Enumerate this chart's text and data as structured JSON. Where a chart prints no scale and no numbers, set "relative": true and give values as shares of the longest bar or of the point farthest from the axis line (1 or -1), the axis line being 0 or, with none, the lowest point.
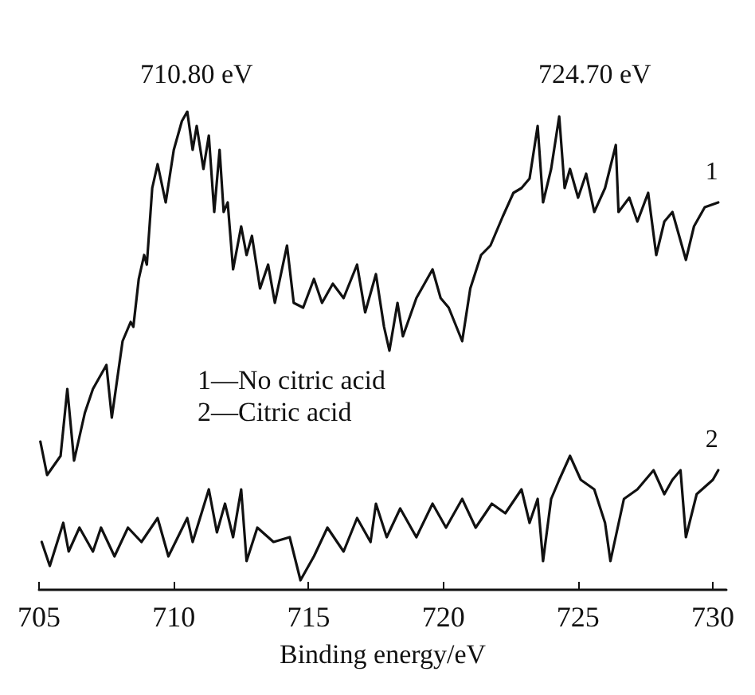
{
  "chart_data": {
    "type": "line",
    "relative": true,
    "xlabel": "Binding energy/eV",
    "xlim": [
      705,
      730.5
    ],
    "xticks": [
      705,
      710,
      715,
      720,
      725,
      730
    ],
    "grid": false,
    "legend": false,
    "marker": "none",
    "line_style": "solid",
    "annotations": [
      "710.80 eV",
      "724.70 eV",
      "1—No citric acid",
      "2—Citric acid"
    ],
    "series": [
      {
        "name": "1",
        "color": "#111111",
        "x": [
          705.05,
          705.3,
          705.8,
          706.05,
          706.3,
          706.7,
          707.0,
          707.5,
          707.7,
          707.9,
          708.1,
          708.4,
          708.5,
          708.7,
          708.9,
          709.0,
          709.2,
          709.4,
          709.7,
          710.0,
          710.3,
          710.5,
          710.7,
          710.85,
          711.1,
          711.3,
          711.5,
          711.7,
          711.85,
          712.0,
          712.2,
          712.5,
          712.7,
          712.9,
          713.2,
          713.5,
          713.75,
          714.2,
          714.45,
          714.8,
          715.2,
          715.5,
          715.9,
          716.3,
          716.8,
          717.1,
          717.5,
          717.8,
          718.0,
          718.3,
          718.5,
          719.0,
          719.6,
          719.9,
          720.2,
          720.7,
          721.0,
          721.4,
          721.75,
          722.2,
          722.6,
          722.9,
          723.2,
          723.5,
          723.7,
          724.0,
          724.3,
          724.5,
          724.7,
          725.0,
          725.3,
          725.6,
          726.0,
          726.4,
          726.5,
          726.9,
          727.2,
          727.6,
          727.9,
          728.2,
          728.5,
          729.0,
          729.3,
          729.7,
          730.2
        ],
        "values": [
          0.31,
          0.24,
          0.28,
          0.42,
          0.27,
          0.37,
          0.42,
          0.47,
          0.36,
          0.44,
          0.52,
          0.56,
          0.55,
          0.65,
          0.7,
          0.68,
          0.84,
          0.89,
          0.81,
          0.92,
          0.98,
          1.0,
          0.92,
          0.97,
          0.88,
          0.95,
          0.79,
          0.92,
          0.79,
          0.81,
          0.67,
          0.76,
          0.7,
          0.74,
          0.63,
          0.68,
          0.6,
          0.72,
          0.6,
          0.59,
          0.65,
          0.6,
          0.64,
          0.61,
          0.68,
          0.58,
          0.66,
          0.55,
          0.5,
          0.6,
          0.53,
          0.61,
          0.67,
          0.61,
          0.59,
          0.52,
          0.63,
          0.7,
          0.72,
          0.78,
          0.83,
          0.84,
          0.86,
          0.97,
          0.81,
          0.88,
          0.99,
          0.84,
          0.88,
          0.82,
          0.87,
          0.79,
          0.84,
          0.93,
          0.79,
          0.82,
          0.77,
          0.83,
          0.7,
          0.77,
          0.79,
          0.69,
          0.76,
          0.8,
          0.81
        ]
      },
      {
        "name": "2",
        "color": "#111111",
        "x": [
          705.1,
          705.4,
          705.9,
          706.1,
          706.5,
          707.0,
          707.3,
          707.8,
          708.3,
          708.8,
          709.4,
          709.8,
          710.5,
          710.7,
          711.3,
          711.6,
          711.9,
          712.2,
          712.5,
          712.7,
          713.1,
          713.7,
          714.3,
          714.7,
          715.2,
          715.7,
          716.3,
          716.8,
          717.3,
          717.5,
          717.9,
          718.4,
          719.0,
          719.6,
          720.1,
          720.7,
          721.2,
          721.8,
          722.3,
          722.9,
          723.2,
          723.5,
          723.7,
          724.0,
          724.3,
          724.7,
          725.1,
          725.6,
          726.0,
          726.2,
          726.7,
          727.2,
          727.8,
          728.2,
          728.5,
          728.8,
          729.0,
          729.4,
          730.0,
          730.2
        ],
        "values": [
          0.1,
          0.05,
          0.14,
          0.08,
          0.13,
          0.08,
          0.13,
          0.07,
          0.13,
          0.1,
          0.15,
          0.07,
          0.15,
          0.1,
          0.21,
          0.12,
          0.18,
          0.11,
          0.21,
          0.06,
          0.13,
          0.1,
          0.11,
          0.02,
          0.07,
          0.13,
          0.08,
          0.15,
          0.1,
          0.18,
          0.11,
          0.17,
          0.11,
          0.18,
          0.13,
          0.19,
          0.13,
          0.18,
          0.16,
          0.21,
          0.14,
          0.19,
          0.06,
          0.19,
          0.23,
          0.28,
          0.23,
          0.21,
          0.14,
          0.06,
          0.19,
          0.21,
          0.25,
          0.2,
          0.23,
          0.25,
          0.11,
          0.2,
          0.23,
          0.25
        ]
      }
    ]
  }
}
